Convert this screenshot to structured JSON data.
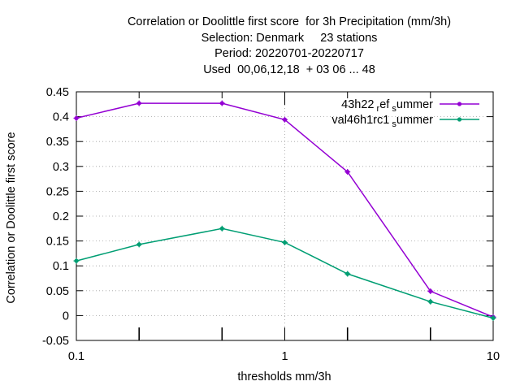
{
  "chart_data": {
    "type": "line",
    "title_lines": [
      "Correlation or Doolittle first score  for 3h Precipitation (mm/3h)",
      "Selection: Denmark     23 stations",
      "Period: 20220701-20220717",
      "Used  00,06,12,18  + 03 06 ... 48"
    ],
    "xlabel": "thresholds mm/3h",
    "ylabel": "Correlation or Doolittle first score",
    "x_scale": "log",
    "xlim": [
      0.1,
      10
    ],
    "ylim": [
      -0.05,
      0.45
    ],
    "x_ticks": [
      {
        "value": 0.1,
        "label": "0.1"
      },
      {
        "value": 1,
        "label": "1"
      },
      {
        "value": 10,
        "label": "10"
      }
    ],
    "x_minor_ticks": [
      0.2,
      0.5,
      2,
      5
    ],
    "y_ticks": [
      "-0.05",
      "0",
      "0.05",
      "0.1",
      "0.15",
      "0.2",
      "0.25",
      "0.3",
      "0.35",
      "0.4",
      "0.45"
    ],
    "grid": true,
    "legend_position": "top-right",
    "x": [
      0.1,
      0.2,
      0.5,
      1,
      2,
      5,
      10
    ],
    "series": [
      {
        "name": "43h22",
        "name_sub1": "r",
        "name_mid": "ef",
        "name_sub2": "s",
        "name_end": "ummer",
        "color": "#9400d3",
        "values": [
          0.397,
          0.427,
          0.427,
          0.394,
          0.289,
          0.049,
          -0.003
        ]
      },
      {
        "name": "val46h1rc1",
        "name_sub2": "s",
        "name_end": "ummer",
        "color": "#009e73",
        "values": [
          0.11,
          0.143,
          0.175,
          0.147,
          0.084,
          0.028,
          -0.005
        ]
      }
    ]
  }
}
